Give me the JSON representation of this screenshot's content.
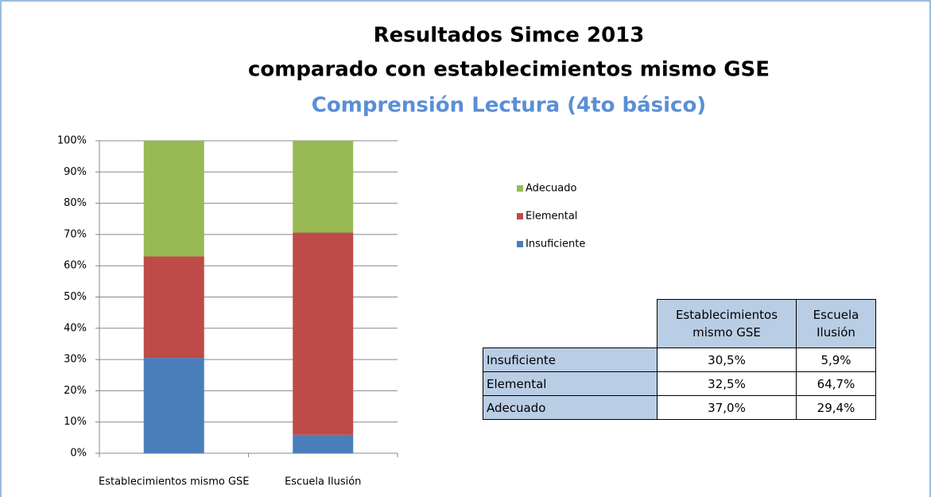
{
  "chart_data": {
    "type": "stacked_bar",
    "title": [
      "Resultados Simce 2013",
      "comparado con establecimientos mismo GSE"
    ],
    "subtitle": "Comprensión Lectura (4to básico)",
    "categories": [
      "Establecimientos  mismo  GSE",
      "Escuela Ilusión"
    ],
    "series": [
      {
        "name": "Insuficiente",
        "color": "#4a7ebb",
        "values": [
          30.5,
          5.9
        ]
      },
      {
        "name": "Elemental",
        "color": "#be4b48",
        "values": [
          32.5,
          64.7
        ]
      },
      {
        "name": "Adecuado",
        "color": "#98b954",
        "values": [
          37.0,
          29.4
        ]
      }
    ],
    "ylim": [
      0,
      100
    ],
    "yticks": [
      {
        "value": 0,
        "label": "0%"
      },
      {
        "value": 10,
        "label": "10%"
      },
      {
        "value": 20,
        "label": "20%"
      },
      {
        "value": 30,
        "label": "30%"
      },
      {
        "value": 40,
        "label": "40%"
      },
      {
        "value": 50,
        "label": "50%"
      },
      {
        "value": 60,
        "label": "60%"
      },
      {
        "value": 70,
        "label": "70%"
      },
      {
        "value": 80,
        "label": "80%"
      },
      {
        "value": 90,
        "label": "90%"
      },
      {
        "value": 100,
        "label": "100%"
      }
    ],
    "grid": true
  },
  "table": {
    "header": [
      "Establecimientos mismo GSE",
      "Escuela Ilusión"
    ],
    "rows": [
      {
        "label": "Insuficiente",
        "cells": [
          "30,5%",
          "5,9%"
        ]
      },
      {
        "label": "Elemental",
        "cells": [
          "32,5%",
          "64,7%"
        ]
      },
      {
        "label": "Adecuado",
        "cells": [
          "37,0%",
          "29,4%"
        ]
      }
    ]
  }
}
